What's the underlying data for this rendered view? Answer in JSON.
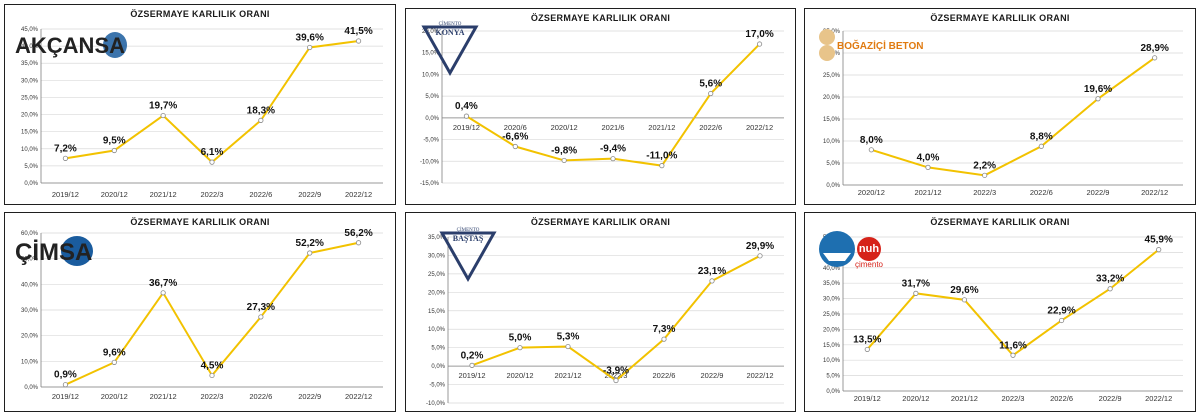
{
  "colors": {
    "line": "#F2C200",
    "marker": "#F2C200",
    "grid": "#D9D9D9",
    "axis": "#7F7F7F",
    "border": "#1F1F1F"
  },
  "chart_data": [
    {
      "id": "akcansa",
      "type": "line",
      "title": "ÖZSERMAYE KARLILIK ORANI",
      "logo": {
        "text": "AKÇANSA",
        "style": "akcansa"
      },
      "categories": [
        "2019/12",
        "2020/12",
        "2021/12",
        "2022/3",
        "2022/6",
        "2022/9",
        "2022/12"
      ],
      "values": [
        7.2,
        9.5,
        19.7,
        6.1,
        18.3,
        39.6,
        41.5
      ],
      "labels": [
        "7,2%",
        "9,5%",
        "19,7%",
        "6,1%",
        "18,3%",
        "39,6%",
        "41,5%"
      ],
      "ylim": [
        0,
        45
      ],
      "ystep": 5,
      "yticks": [
        "0,0%",
        "5,0%",
        "10,0%",
        "15,0%",
        "20,0%",
        "25,0%",
        "30,0%",
        "35,0%",
        "40,0%",
        "45,0%"
      ],
      "xlabel_at_bottom": true,
      "grid": true
    },
    {
      "id": "konya",
      "type": "line",
      "title": "ÖZSERMAYE KARLILIK ORANI",
      "logo": {
        "text": "KONYA",
        "subtext": "ÇİMENTO",
        "style": "triangle"
      },
      "categories": [
        "2019/12",
        "2020/6",
        "2020/12",
        "2021/6",
        "2021/12",
        "2022/6",
        "2022/12"
      ],
      "values": [
        0.4,
        -6.6,
        -9.8,
        -9.4,
        -11.0,
        5.6,
        17.0
      ],
      "labels": [
        "0,4%",
        "-6,6%",
        "-9,8%",
        "-9,4%",
        "-11,0%",
        "5,6%",
        "17,0%"
      ],
      "ylim": [
        -15,
        20
      ],
      "ystep": 5,
      "yticks": [
        "-15,0%",
        "-10,0%",
        "-5,0%",
        "0,0%",
        "5,0%",
        "10,0%",
        "15,0%",
        "20,0%"
      ],
      "xlabel_at_bottom": false,
      "grid": true
    },
    {
      "id": "bogazici",
      "type": "line",
      "title": "ÖZSERMAYE KARLILIK ORANI",
      "logo": {
        "text": "BOĞAZİÇİ BETON",
        "style": "bogazici"
      },
      "categories": [
        "2020/12",
        "2021/12",
        "2022/3",
        "2022/6",
        "2022/9",
        "2022/12"
      ],
      "values": [
        8.0,
        4.0,
        2.2,
        8.8,
        19.6,
        28.9
      ],
      "labels": [
        "8,0%",
        "4,0%",
        "2,2%",
        "8,8%",
        "19,6%",
        "28,9%"
      ],
      "ylim": [
        0,
        35
      ],
      "ystep": 5,
      "yticks": [
        "0,0%",
        "5,0%",
        "10,0%",
        "15,0%",
        "20,0%",
        "25,0%",
        "30,0%",
        "35,0%"
      ],
      "xlabel_at_bottom": true,
      "grid": true
    },
    {
      "id": "cimsa",
      "type": "line",
      "title": "ÖZSERMAYE KARLILIK ORANI",
      "logo": {
        "text": "ÇİMSA",
        "style": "cimsa"
      },
      "categories": [
        "2019/12",
        "2020/12",
        "2021/12",
        "2022/3",
        "2022/6",
        "2022/9",
        "2022/12"
      ],
      "values": [
        0.9,
        9.6,
        36.7,
        4.5,
        27.3,
        52.2,
        56.2
      ],
      "labels": [
        "0,9%",
        "9,6%",
        "36,7%",
        "4,5%",
        "27,3%",
        "52,2%",
        "56,2%"
      ],
      "ylim": [
        0,
        60
      ],
      "ystep": 10,
      "yticks": [
        "0,0%",
        "10,0%",
        "20,0%",
        "30,0%",
        "40,0%",
        "50,0%",
        "60,0%"
      ],
      "xlabel_at_bottom": true,
      "grid": true
    },
    {
      "id": "bastas",
      "type": "line",
      "title": "ÖZSERMAYE KARLILIK ORANI",
      "logo": {
        "text": "BAŞTAŞ",
        "subtext": "ÇİMENTO",
        "style": "triangle"
      },
      "categories": [
        "2019/12",
        "2020/12",
        "2021/12",
        "2022/3",
        "2022/6",
        "2022/9",
        "2022/12"
      ],
      "values": [
        0.2,
        5.0,
        5.3,
        -3.9,
        7.3,
        23.1,
        29.9
      ],
      "labels": [
        "0,2%",
        "5,0%",
        "5,3%",
        "-3,9%",
        "7,3%",
        "23,1%",
        "29,9%"
      ],
      "ylim": [
        -10,
        35
      ],
      "ystep": 5,
      "yticks": [
        "-10,0%",
        "-5,0%",
        "0,0%",
        "5,0%",
        "10,0%",
        "15,0%",
        "20,0%",
        "25,0%",
        "30,0%",
        "35,0%"
      ],
      "xlabel_at_bottom": false,
      "grid": true
    },
    {
      "id": "nuh",
      "type": "line",
      "title": "ÖZSERMAYE KARLILIK ORANI",
      "logo": {
        "text": "nuh",
        "subtext": "çimento",
        "style": "nuh"
      },
      "categories": [
        "2019/12",
        "2020/12",
        "2021/12",
        "2022/3",
        "2022/6",
        "2022/9",
        "2022/12"
      ],
      "values": [
        13.5,
        31.7,
        29.6,
        11.6,
        22.9,
        33.2,
        45.9
      ],
      "labels": [
        "13,5%",
        "31,7%",
        "29,6%",
        "11,6%",
        "22,9%",
        "33,2%",
        "45,9%"
      ],
      "ylim": [
        0,
        50
      ],
      "ystep": 5,
      "yticks": [
        "0,0%",
        "5,0%",
        "10,0%",
        "15,0%",
        "20,0%",
        "25,0%",
        "30,0%",
        "35,0%",
        "40,0%",
        "45,0%",
        "50,0%"
      ],
      "xlabel_at_bottom": true,
      "grid": true
    }
  ]
}
